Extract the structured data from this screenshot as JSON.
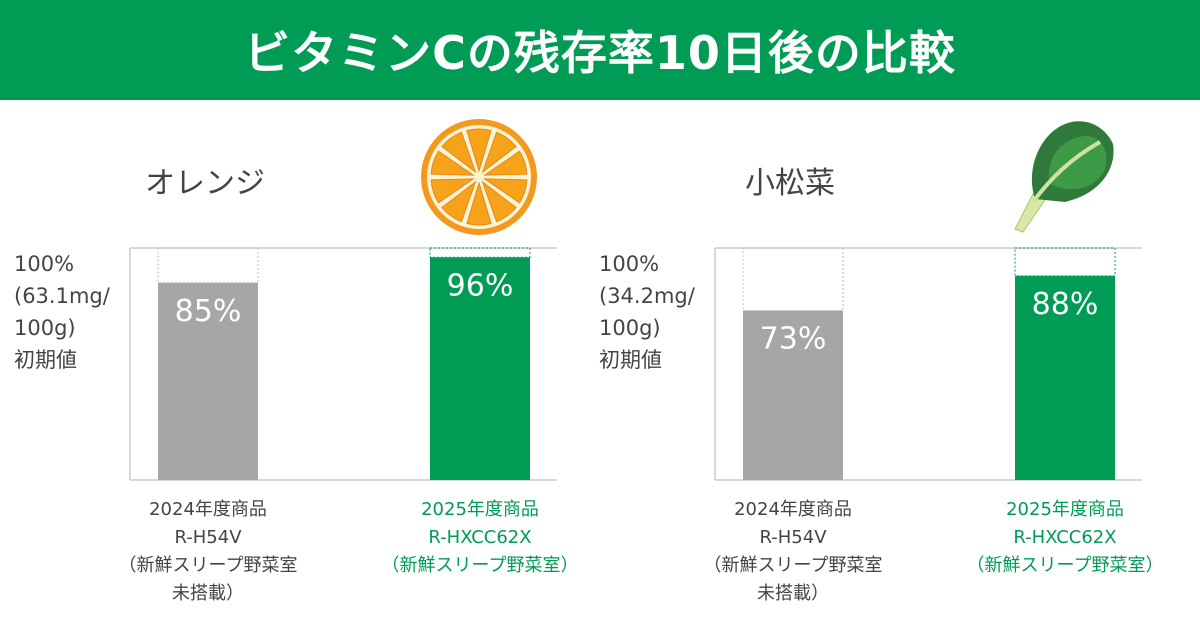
{
  "title": "ビタミンCの残存率10日後の比較",
  "colors": {
    "accent": "#009c56",
    "old": "#a6a6a6"
  },
  "chart_data": [
    {
      "type": "bar",
      "title": "オレンジ",
      "ylabel_lines": [
        "100%",
        "(63.1mg/",
        "100g)",
        "初期値"
      ],
      "ylim": [
        0,
        100
      ],
      "categories": [
        [
          "2024年度商品",
          "R-H54V",
          "（新鮮スリープ野菜室",
          "未搭載）"
        ],
        [
          "2025年度商品",
          "R-HXCC62X",
          "（新鮮スリープ野菜室）"
        ]
      ],
      "values": [
        85,
        96
      ],
      "data_labels": [
        "85%",
        "96%"
      ],
      "illustration": "orange-slice-icon"
    },
    {
      "type": "bar",
      "title": "小松菜",
      "ylabel_lines": [
        "100%",
        "(34.2mg/",
        "100g)",
        "初期値"
      ],
      "ylim": [
        0,
        100
      ],
      "categories": [
        [
          "2024年度商品",
          "R-H54V",
          "（新鮮スリープ野菜室",
          "未搭載）"
        ],
        [
          "2025年度商品",
          "R-HXCC62X",
          "（新鮮スリープ野菜室）"
        ]
      ],
      "values": [
        73,
        88
      ],
      "data_labels": [
        "73%",
        "88%"
      ],
      "illustration": "komatsuna-icon"
    }
  ]
}
